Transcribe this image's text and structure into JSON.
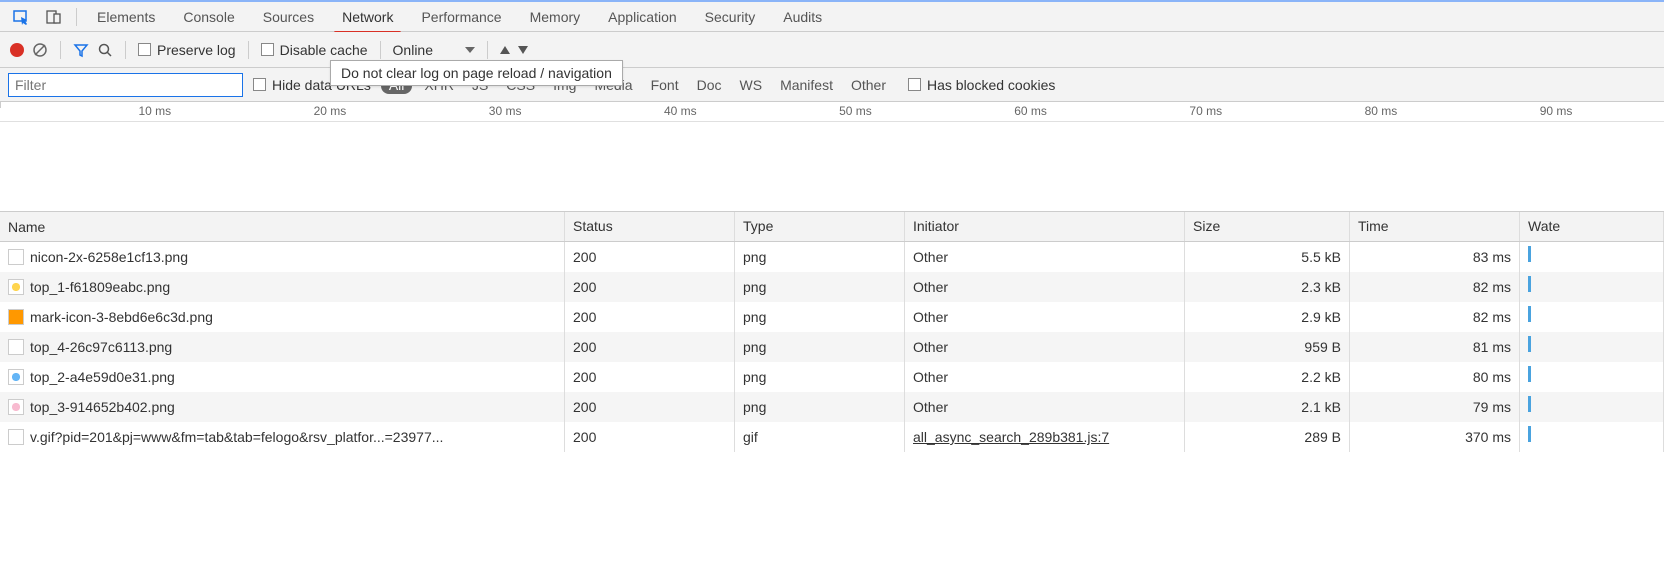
{
  "tabs": [
    "Elements",
    "Console",
    "Sources",
    "Network",
    "Performance",
    "Memory",
    "Application",
    "Security",
    "Audits"
  ],
  "active_tab_index": 3,
  "toolbar": {
    "preserve_log": "Preserve log",
    "disable_cache": "Disable cache",
    "throttle": "Online",
    "tooltip": "Do not clear log on page reload / navigation"
  },
  "filterbar": {
    "placeholder": "Filter",
    "hide_data_urls": "Hide data URLs",
    "types": [
      "All",
      "XHR",
      "JS",
      "CSS",
      "Img",
      "Media",
      "Font",
      "Doc",
      "WS",
      "Manifest",
      "Other"
    ],
    "active_type_index": 0,
    "has_blocked": "Has blocked cookies"
  },
  "timeline_ticks": [
    "10 ms",
    "20 ms",
    "30 ms",
    "40 ms",
    "50 ms",
    "60 ms",
    "70 ms",
    "80 ms",
    "90 ms"
  ],
  "columns": [
    "Name",
    "Status",
    "Type",
    "Initiator",
    "Size",
    "Time",
    "Wate"
  ],
  "rows": [
    {
      "icon": "fav-blank",
      "name": "nicon-2x-6258e1cf13.png",
      "status": "200",
      "type": "png",
      "initiator": "Other",
      "init_link": false,
      "size": "5.5 kB",
      "time": "83 ms"
    },
    {
      "icon": "fav-yellow",
      "name": "top_1-f61809eabc.png",
      "status": "200",
      "type": "png",
      "initiator": "Other",
      "init_link": false,
      "size": "2.3 kB",
      "time": "82 ms"
    },
    {
      "icon": "fav-orange",
      "name": "mark-icon-3-8ebd6e6c3d.png",
      "status": "200",
      "type": "png",
      "initiator": "Other",
      "init_link": false,
      "size": "2.9 kB",
      "time": "82 ms"
    },
    {
      "icon": "fav-blank",
      "name": "top_4-26c97c6113.png",
      "status": "200",
      "type": "png",
      "initiator": "Other",
      "init_link": false,
      "size": "959 B",
      "time": "81 ms"
    },
    {
      "icon": "fav-blue",
      "name": "top_2-a4e59d0e31.png",
      "status": "200",
      "type": "png",
      "initiator": "Other",
      "init_link": false,
      "size": "2.2 kB",
      "time": "80 ms"
    },
    {
      "icon": "fav-pink",
      "name": "top_3-914652b402.png",
      "status": "200",
      "type": "png",
      "initiator": "Other",
      "init_link": false,
      "size": "2.1 kB",
      "time": "79 ms"
    },
    {
      "icon": "fav-doc",
      "name": "v.gif?pid=201&pj=www&fm=tab&tab=felogo&rsv_platfor...=23977...",
      "status": "200",
      "type": "gif",
      "initiator": "all_async_search_289b381.js:7",
      "init_link": true,
      "size": "289 B",
      "time": "370 ms"
    }
  ]
}
